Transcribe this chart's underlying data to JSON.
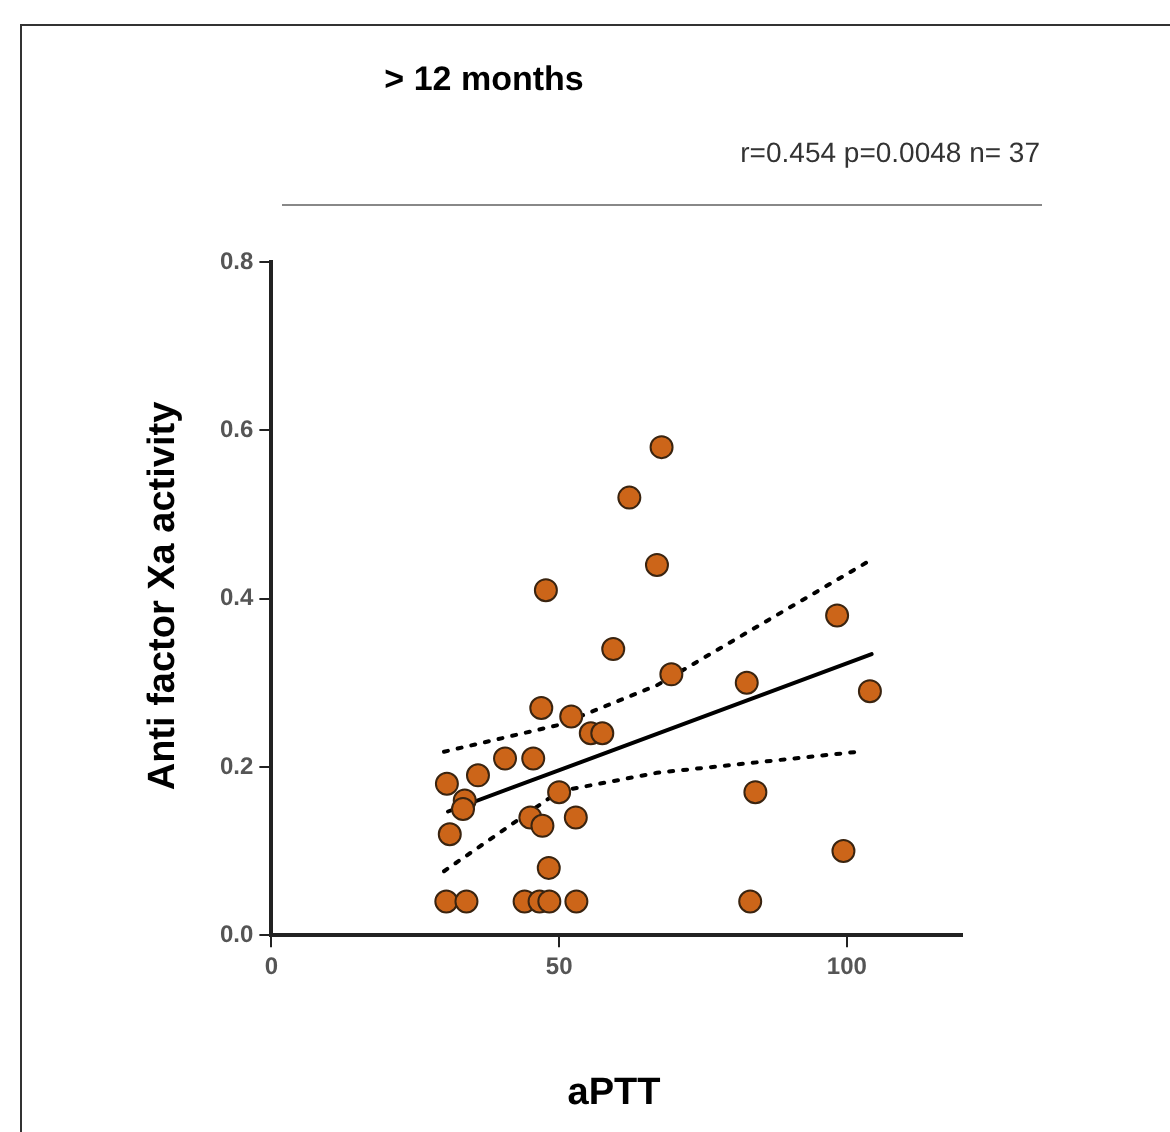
{
  "chart_data": {
    "type": "scatter",
    "title": "> 12 months",
    "xlabel": "aPTT",
    "ylabel": "Anti factor Xa activity",
    "annotations": [
      "r=0.454 p=0.0048 n= 37"
    ],
    "xlim": [
      0,
      120
    ],
    "xticks": [
      0,
      50,
      100
    ],
    "ylim": [
      0,
      0.8
    ],
    "yticks": [
      {
        "value": 0,
        "label": "0.0"
      },
      {
        "value": 0.2,
        "label": "0.2"
      },
      {
        "value": 0.4,
        "label": "0.4"
      },
      {
        "value": 0.6,
        "label": "0.6"
      },
      {
        "value": 0.8,
        "label": "0.8"
      }
    ],
    "grid": false,
    "legend": false,
    "series": [
      {
        "marker": "circle",
        "color": "#cc6519",
        "x": [
          67.8,
          62.2,
          67,
          47.7,
          59.4,
          98.3,
          69.5,
          82.6,
          104,
          46.9,
          52.1,
          55.5,
          57.5,
          40.6,
          45.5,
          35.9,
          30.5,
          33.6,
          33.3,
          50,
          84.1,
          45,
          52.9,
          47.1,
          31,
          48.2,
          99.4,
          30.4,
          33.9,
          44,
          46.6,
          48.3,
          53,
          83.2
        ],
        "values": [
          0.58,
          0.52,
          0.44,
          0.41,
          0.34,
          0.38,
          0.31,
          0.3,
          0.29,
          0.27,
          0.26,
          0.24,
          0.24,
          0.21,
          0.21,
          0.19,
          0.18,
          0.16,
          0.15,
          0.17,
          0.17,
          0.14,
          0.14,
          0.13,
          0.12,
          0.08,
          0.1,
          0.04,
          0.04,
          0.04,
          0.04,
          0.04,
          0.04,
          0.04
        ]
      },
      {
        "type": "line",
        "line_style": "solid",
        "color": "#000000",
        "x": [
          30.7,
          104.3
        ],
        "values": [
          0.147,
          0.334
        ]
      },
      {
        "type": "line",
        "line_style": "dotted",
        "color": "#000000",
        "x": [
          30,
          50,
          67,
          103.7
        ],
        "values": [
          0.218,
          0.25,
          0.297,
          0.444
        ]
      },
      {
        "type": "line",
        "line_style": "dotted",
        "color": "#000000",
        "x": [
          30,
          50,
          67,
          102
        ],
        "values": [
          0.076,
          0.171,
          0.193,
          0.218
        ]
      }
    ]
  }
}
